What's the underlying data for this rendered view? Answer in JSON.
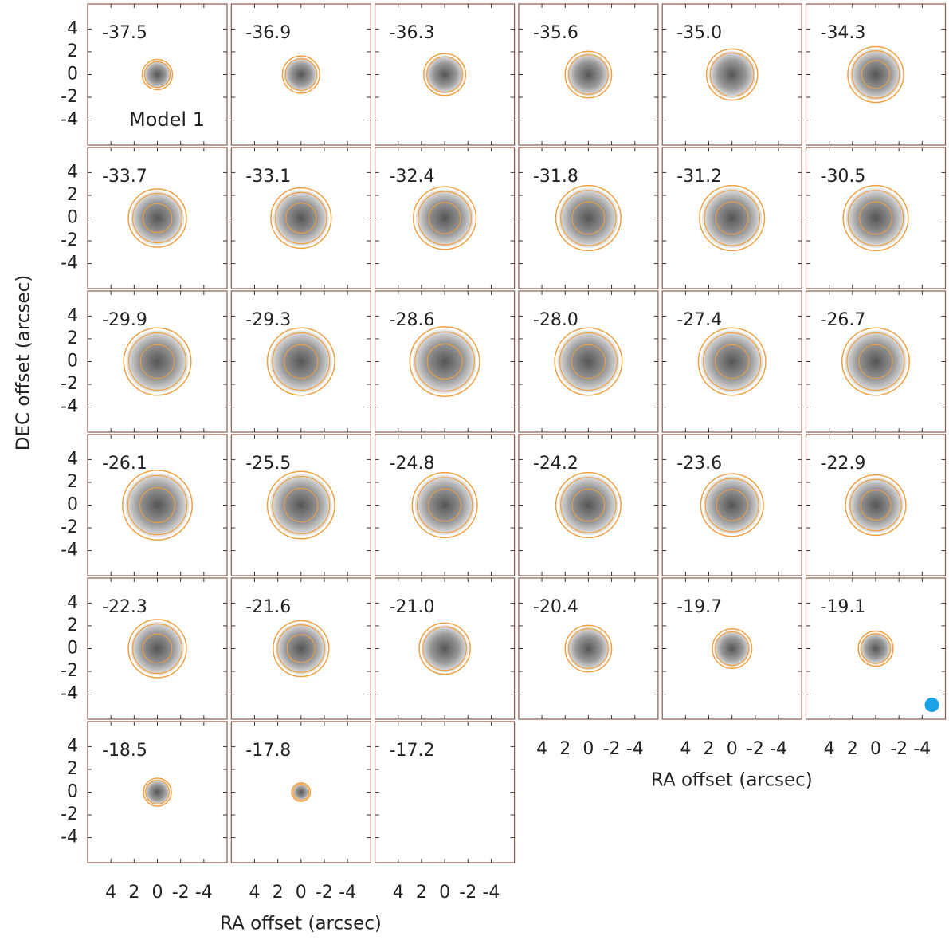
{
  "chart_data": {
    "type": "channel_map",
    "annotation": "Model 1",
    "xlabel": "RA offset (arcsec)",
    "ylabel": "DEC offset (arcsec)",
    "xlim": [
      6,
      -6
    ],
    "ylim": [
      -6.2,
      6.2
    ],
    "xticks": [
      4,
      2,
      0,
      -2,
      -4
    ],
    "yticks": [
      4,
      2,
      0,
      -2,
      -4
    ],
    "contour_color": "#f0a040",
    "beam_color": "#1aa3e8",
    "channels": [
      "-37.5",
      "-36.9",
      "-36.3",
      "-35.6",
      "-35.0",
      "-34.3",
      "-33.7",
      "-33.1",
      "-32.4",
      "-31.8",
      "-31.2",
      "-30.5",
      "-29.9",
      "-29.3",
      "-28.6",
      "-28.0",
      "-27.4",
      "-26.7",
      "-26.1",
      "-25.5",
      "-24.8",
      "-24.2",
      "-23.6",
      "-22.9",
      "-22.3",
      "-21.6",
      "-21.0",
      "-20.4",
      "-19.7",
      "-19.1",
      "-18.5",
      "-17.8",
      "-17.2"
    ],
    "radius": [
      1.3,
      1.6,
      1.8,
      2.0,
      2.2,
      2.4,
      2.5,
      2.6,
      2.7,
      2.8,
      2.8,
      2.8,
      2.9,
      2.9,
      3.0,
      2.9,
      2.9,
      2.9,
      3.0,
      2.9,
      2.8,
      2.8,
      2.7,
      2.6,
      2.5,
      2.4,
      2.2,
      2.0,
      1.7,
      1.5,
      1.2,
      0.8,
      null
    ]
  }
}
